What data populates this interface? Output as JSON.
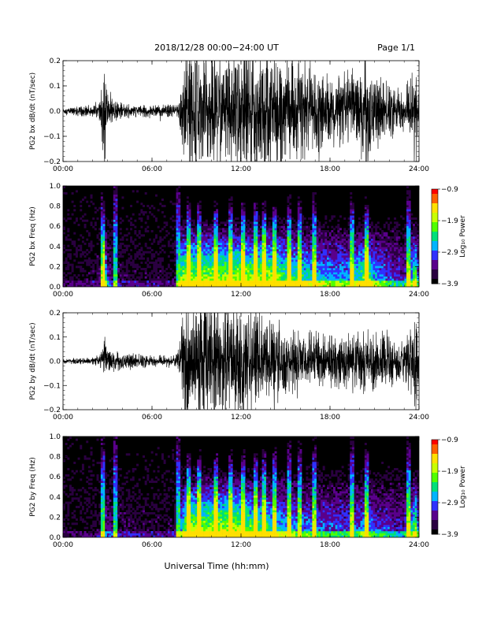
{
  "header": {
    "title": "2018/12/28  00:00−24:00 UT",
    "page": "Page 1/1"
  },
  "xaxis_label": "Universal Time (hh:mm)",
  "colormap": [
    "#000000",
    "#2a0040",
    "#5a008c",
    "#3030ff",
    "#00b4ff",
    "#00e07a",
    "#50ff00",
    "#c8ff00",
    "#ffe000",
    "#ff6000",
    "#ff0000"
  ],
  "chart_data": [
    {
      "type": "line",
      "ylabel": "PG2 bx dB/dt (nT/sec)",
      "x_ticks": [
        "00:00",
        "06:00",
        "12:00",
        "18:00",
        "24:00"
      ],
      "y_ticks": [
        "0.2",
        "0.1",
        "0.0",
        "−0.1",
        "−0.2"
      ],
      "ylim": [
        -0.2,
        0.2
      ],
      "xlim_hours": [
        0,
        24
      ],
      "envelope": {
        "hours": [
          0,
          1,
          2,
          2.5,
          2.8,
          3.0,
          3.5,
          4,
          5,
          6,
          7,
          7.5,
          7.8,
          8.0,
          8.3,
          9,
          10,
          11,
          12,
          13,
          14,
          15,
          16,
          17,
          18,
          19,
          20,
          20.5,
          21,
          22,
          22.5,
          23,
          23.5,
          23.8,
          24
        ],
        "amplitude": [
          0.012,
          0.015,
          0.02,
          0.03,
          0.19,
          0.06,
          0.03,
          0.025,
          0.02,
          0.02,
          0.02,
          0.025,
          0.03,
          0.2,
          0.2,
          0.2,
          0.2,
          0.2,
          0.2,
          0.2,
          0.2,
          0.17,
          0.15,
          0.13,
          0.12,
          0.11,
          0.15,
          0.2,
          0.12,
          0.09,
          0.08,
          0.07,
          0.12,
          0.2,
          0.05
        ]
      }
    },
    {
      "type": "heatmap",
      "ylabel": "PG2 bx Freq (Hz)",
      "x_ticks": [
        "00:00",
        "06:00",
        "12:00",
        "18:00",
        "24:00"
      ],
      "y_ticks": [
        "1.0",
        "0.8",
        "0.6",
        "0.4",
        "0.2",
        "0.0"
      ],
      "ylim": [
        0,
        1.0
      ],
      "xlim_hours": [
        0,
        24
      ],
      "colorbar": {
        "label": "Log₁₀ Power",
        "ticks": [
          "−0.9",
          "−1.9",
          "−2.9",
          "−3.9"
        ],
        "range": [
          -3.9,
          -0.9
        ]
      },
      "spikes_hours": [
        2.7,
        3.5,
        7.7,
        8.5,
        9.2,
        10.3,
        11.3,
        12.2,
        13.0,
        13.6,
        14.3,
        15.2,
        16.0,
        17.0,
        19.5,
        20.5,
        23.3
      ]
    },
    {
      "type": "line",
      "ylabel": "PG2 by dB/dt (nT/sec)",
      "x_ticks": [
        "00:00",
        "06:00",
        "12:00",
        "18:00",
        "24:00"
      ],
      "y_ticks": [
        "0.2",
        "0.1",
        "0.0",
        "−0.1",
        "−0.2"
      ],
      "ylim": [
        -0.2,
        0.2
      ],
      "xlim_hours": [
        0,
        24
      ],
      "envelope": {
        "hours": [
          0,
          1,
          2,
          2.5,
          2.8,
          3.0,
          3.5,
          4,
          5,
          6,
          7,
          7.5,
          7.8,
          8.0,
          8.3,
          9,
          10,
          11,
          12,
          13,
          14,
          15,
          16,
          17,
          18,
          19,
          20,
          20.5,
          21,
          22,
          22.5,
          23,
          23.5,
          23.8,
          24
        ],
        "amplitude": [
          0.008,
          0.01,
          0.012,
          0.02,
          0.08,
          0.05,
          0.035,
          0.03,
          0.025,
          0.02,
          0.02,
          0.025,
          0.04,
          0.12,
          0.2,
          0.2,
          0.2,
          0.2,
          0.2,
          0.17,
          0.15,
          0.12,
          0.1,
          0.1,
          0.09,
          0.09,
          0.1,
          0.12,
          0.09,
          0.08,
          0.07,
          0.07,
          0.12,
          0.2,
          0.04
        ]
      }
    },
    {
      "type": "heatmap",
      "ylabel": "PG2 by Freq (Hz)",
      "x_ticks": [
        "00:00",
        "06:00",
        "12:00",
        "18:00",
        "24:00"
      ],
      "y_ticks": [
        "1.0",
        "0.8",
        "0.6",
        "0.4",
        "0.2",
        "0.0"
      ],
      "ylim": [
        0,
        1.0
      ],
      "xlim_hours": [
        0,
        24
      ],
      "colorbar": {
        "label": "Log₁₀ Power",
        "ticks": [
          "−0.9",
          "−1.9",
          "−2.9",
          "−3.9"
        ],
        "range": [
          -3.9,
          -0.9
        ]
      },
      "spikes_hours": [
        2.7,
        3.5,
        7.7,
        8.5,
        9.2,
        10.3,
        11.3,
        12.2,
        13.0,
        13.6,
        14.3,
        15.2,
        16.0,
        17.0,
        19.5,
        20.5,
        23.3
      ]
    }
  ]
}
